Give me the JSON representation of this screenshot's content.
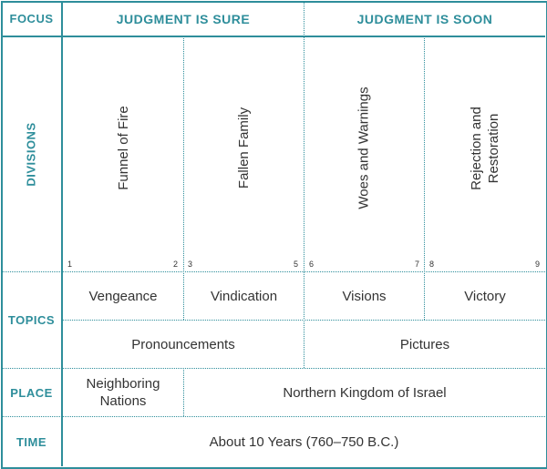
{
  "focus": {
    "label": "FOCUS",
    "sections": [
      "JUDGMENT IS SURE",
      "JUDGMENT IS SOON"
    ]
  },
  "divisions": {
    "label": "DIVISIONS",
    "items": [
      {
        "title_lines": [
          "Funnel of Fire"
        ],
        "start": "1",
        "end": "2"
      },
      {
        "title_lines": [
          "Fallen Family"
        ],
        "start": "3",
        "end": "5"
      },
      {
        "title_lines": [
          "Woes and Warnings"
        ],
        "start": "6",
        "end": "7"
      },
      {
        "title_lines": [
          "Rejection and",
          "Restoration"
        ],
        "start": "8",
        "end": "9"
      }
    ]
  },
  "topics": {
    "label": "TOPICS",
    "row1": [
      "Vengeance",
      "Vindication",
      "Visions",
      "Victory"
    ],
    "row2": [
      "Pronouncements",
      "Pictures"
    ]
  },
  "place": {
    "label": "PLACE",
    "cells": [
      [
        "Neighboring",
        "Nations"
      ],
      "Northern Kingdom of Israel"
    ]
  },
  "time": {
    "label": "TIME",
    "value": "About 10 Years (760–750 B.C.)"
  }
}
